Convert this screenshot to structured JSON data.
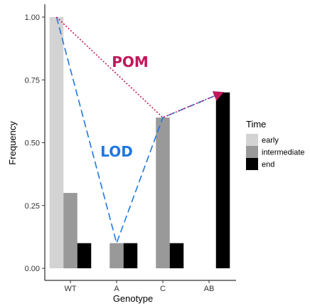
{
  "chart_data": {
    "type": "bar",
    "categories": [
      "WT",
      "A",
      "C",
      "AB"
    ],
    "series": [
      {
        "name": "early",
        "values": [
          1.0,
          0.0,
          0.0,
          0.0
        ]
      },
      {
        "name": "intermediate",
        "values": [
          0.3,
          0.1,
          0.6,
          0.0
        ]
      },
      {
        "name": "end",
        "values": [
          0.1,
          0.1,
          0.1,
          0.7
        ]
      }
    ],
    "xlabel": "Genotype",
    "ylabel": "Frequency",
    "ylim": [
      0,
      1.0
    ],
    "yticks": [
      0.0,
      0.25,
      0.5,
      0.75,
      1.0
    ],
    "ytick_labels": [
      "0.00",
      "0.25",
      "0.50",
      "0.75",
      "1.00"
    ],
    "grid": false,
    "legend": {
      "title": "Time",
      "placement": "right",
      "entries": [
        "early",
        "intermediate",
        "end"
      ]
    },
    "colors": {
      "early": "#d3d3d3",
      "intermediate": "#999999",
      "end": "#000000",
      "lod": "#1f78e0",
      "pom": "#c2185b"
    },
    "annotations": [
      {
        "text": "LOD",
        "style": "dashed",
        "color": "#1f78e0",
        "path": [
          {
            "category": "WT",
            "series": "early",
            "y": 1.0
          },
          {
            "category": "A",
            "series": "intermediate",
            "y": 0.1
          },
          {
            "category": "C",
            "series": "intermediate",
            "y": 0.6
          },
          {
            "category": "AB",
            "series": "end",
            "y": 0.7
          }
        ]
      },
      {
        "text": "POM",
        "style": "dotted",
        "color": "#c2185b",
        "path": [
          {
            "category": "WT",
            "series": "early",
            "y": 1.0
          },
          {
            "category": "C",
            "series": "intermediate",
            "y": 0.6
          },
          {
            "category": "AB",
            "series": "end",
            "y": 0.7
          }
        ]
      }
    ]
  }
}
